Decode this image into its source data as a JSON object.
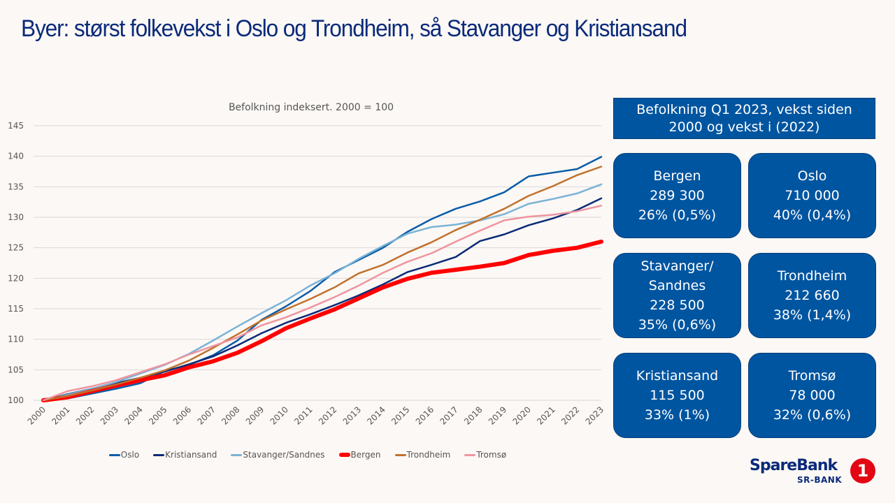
{
  "title": "Byer: størst folkevekst i Oslo og Trondheim, så Stavanger og Kristiansand",
  "chart_data": {
    "type": "line",
    "title": "Befolkning indeksert. 2000 = 100",
    "xlabel": "",
    "ylabel": "",
    "ylim": [
      100,
      145
    ],
    "yticks": [
      100,
      105,
      110,
      115,
      120,
      125,
      130,
      135,
      140,
      145
    ],
    "grid": true,
    "legend_position": "bottom",
    "x": [
      "2000",
      "2001",
      "2002",
      "2003",
      "2004",
      "2005",
      "2006",
      "2007",
      "2008",
      "2009",
      "2010",
      "2011",
      "2012",
      "2013",
      "2014",
      "2015",
      "2016",
      "2017",
      "2018",
      "2019",
      "2020",
      "2021",
      "2022",
      "2023"
    ],
    "series": [
      {
        "name": "Oslo",
        "color": "#0a5ca8",
        "width": 2.5,
        "values": [
          100,
          100.3,
          101.1,
          101.9,
          102.8,
          104.8,
          105.8,
          107.4,
          109.8,
          113.2,
          115.4,
          117.9,
          121.0,
          123.0,
          125.0,
          127.6,
          129.7,
          131.4,
          132.6,
          134.1,
          136.7,
          137.3,
          137.9,
          139.9
        ]
      },
      {
        "name": "Kristiansand",
        "color": "#0b2a78",
        "width": 2.5,
        "values": [
          100,
          101.0,
          101.9,
          102.8,
          103.7,
          104.7,
          105.9,
          107.2,
          109.0,
          111.0,
          112.7,
          114.1,
          115.6,
          117.2,
          119.0,
          121.0,
          122.2,
          123.5,
          126.1,
          127.2,
          128.7,
          129.8,
          131.2,
          133.1
        ]
      },
      {
        "name": "Stavanger/Sandnes",
        "color": "#7ab3d6",
        "width": 2.5,
        "values": [
          100,
          100.9,
          101.9,
          103.0,
          104.4,
          105.8,
          107.6,
          109.8,
          112.1,
          114.3,
          116.4,
          118.8,
          120.8,
          123.2,
          125.3,
          127.3,
          128.4,
          128.8,
          129.5,
          130.5,
          132.2,
          133.0,
          133.9,
          135.4
        ]
      },
      {
        "name": "Bergen",
        "color": "#ff0000",
        "width": 6,
        "values": [
          100,
          100.5,
          101.5,
          102.4,
          103.3,
          104.1,
          105.4,
          106.4,
          107.8,
          109.7,
          111.8,
          113.4,
          114.9,
          116.7,
          118.5,
          119.9,
          120.9,
          121.4,
          121.9,
          122.5,
          123.8,
          124.5,
          125.0,
          126.0
        ]
      },
      {
        "name": "Trondheim",
        "color": "#c0712c",
        "width": 2.5,
        "values": [
          100,
          100.7,
          101.6,
          102.6,
          103.7,
          104.9,
          106.5,
          108.6,
          110.8,
          113.1,
          114.9,
          116.6,
          118.5,
          120.8,
          122.2,
          124.2,
          125.9,
          127.9,
          129.6,
          131.4,
          133.5,
          135.1,
          136.9,
          138.3
        ]
      },
      {
        "name": "Tromsø",
        "color": "#ee95a0",
        "width": 2.5,
        "values": [
          100,
          101.5,
          102.3,
          103.3,
          104.6,
          105.9,
          107.5,
          108.9,
          110.3,
          112.3,
          113.6,
          115.2,
          116.9,
          118.8,
          120.9,
          122.7,
          124.1,
          126.0,
          127.8,
          129.5,
          130.1,
          130.4,
          131.0,
          131.9
        ]
      }
    ]
  },
  "info_header": {
    "line1": "Befolkning Q1 2023, vekst siden",
    "line2": "2000 og vekst i (2022)"
  },
  "cities": [
    {
      "name": "Bergen",
      "name2": "",
      "population": "289 300",
      "growth": "26% (0,5%)"
    },
    {
      "name": "Oslo",
      "name2": "",
      "population": "710 000",
      "growth": "40% (0,4%)"
    },
    {
      "name": "Stavanger/",
      "name2": "Sandnes",
      "population": "228 500",
      "growth": "35% (0,6%)"
    },
    {
      "name": "Trondheim",
      "name2": "",
      "population": "212 660",
      "growth": "38% (1,4%)"
    },
    {
      "name": "Kristiansand",
      "name2": "",
      "population": "115 500",
      "growth": "33% (1%)"
    },
    {
      "name": "Tromsø",
      "name2": "",
      "population": "78 000",
      "growth": "32% (0,6%)"
    }
  ],
  "logo": {
    "brand": "SpareBank",
    "sub": "SR-BANK",
    "mark": "1",
    "colors": {
      "text": "#0a2a7a",
      "mark": "#e30613"
    }
  }
}
